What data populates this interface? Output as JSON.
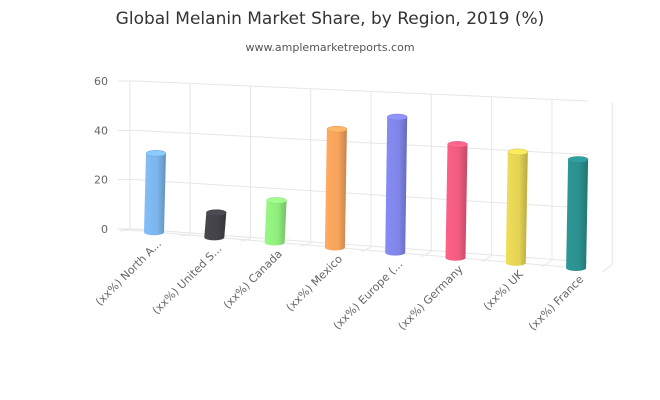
{
  "chart_data": {
    "type": "bar",
    "title": "Global Melanin Market Share, by Region, 2019 (%)",
    "subtitle": "www.amplemarketreports.com",
    "categories": [
      "(xx%) North A...",
      "(xx%) United S...",
      "(xx%) Canada",
      "(xx%) Mexico",
      "(xx%) Europe (...",
      "(xx%) Germany",
      "(xx%) UK",
      "(xx%) France"
    ],
    "values": [
      32,
      10,
      17,
      48,
      55,
      46,
      45,
      44
    ],
    "colors": [
      "#7cb5ec",
      "#434348",
      "#90ed7d",
      "#f7a35c",
      "#8085e9",
      "#f15c80",
      "#e4d354",
      "#2b908f"
    ],
    "ylim": [
      0,
      60
    ],
    "yticks": [
      0,
      20,
      40,
      60
    ],
    "xlabel": "",
    "ylabel": "",
    "grid": true,
    "style": "3d-cylinder"
  }
}
